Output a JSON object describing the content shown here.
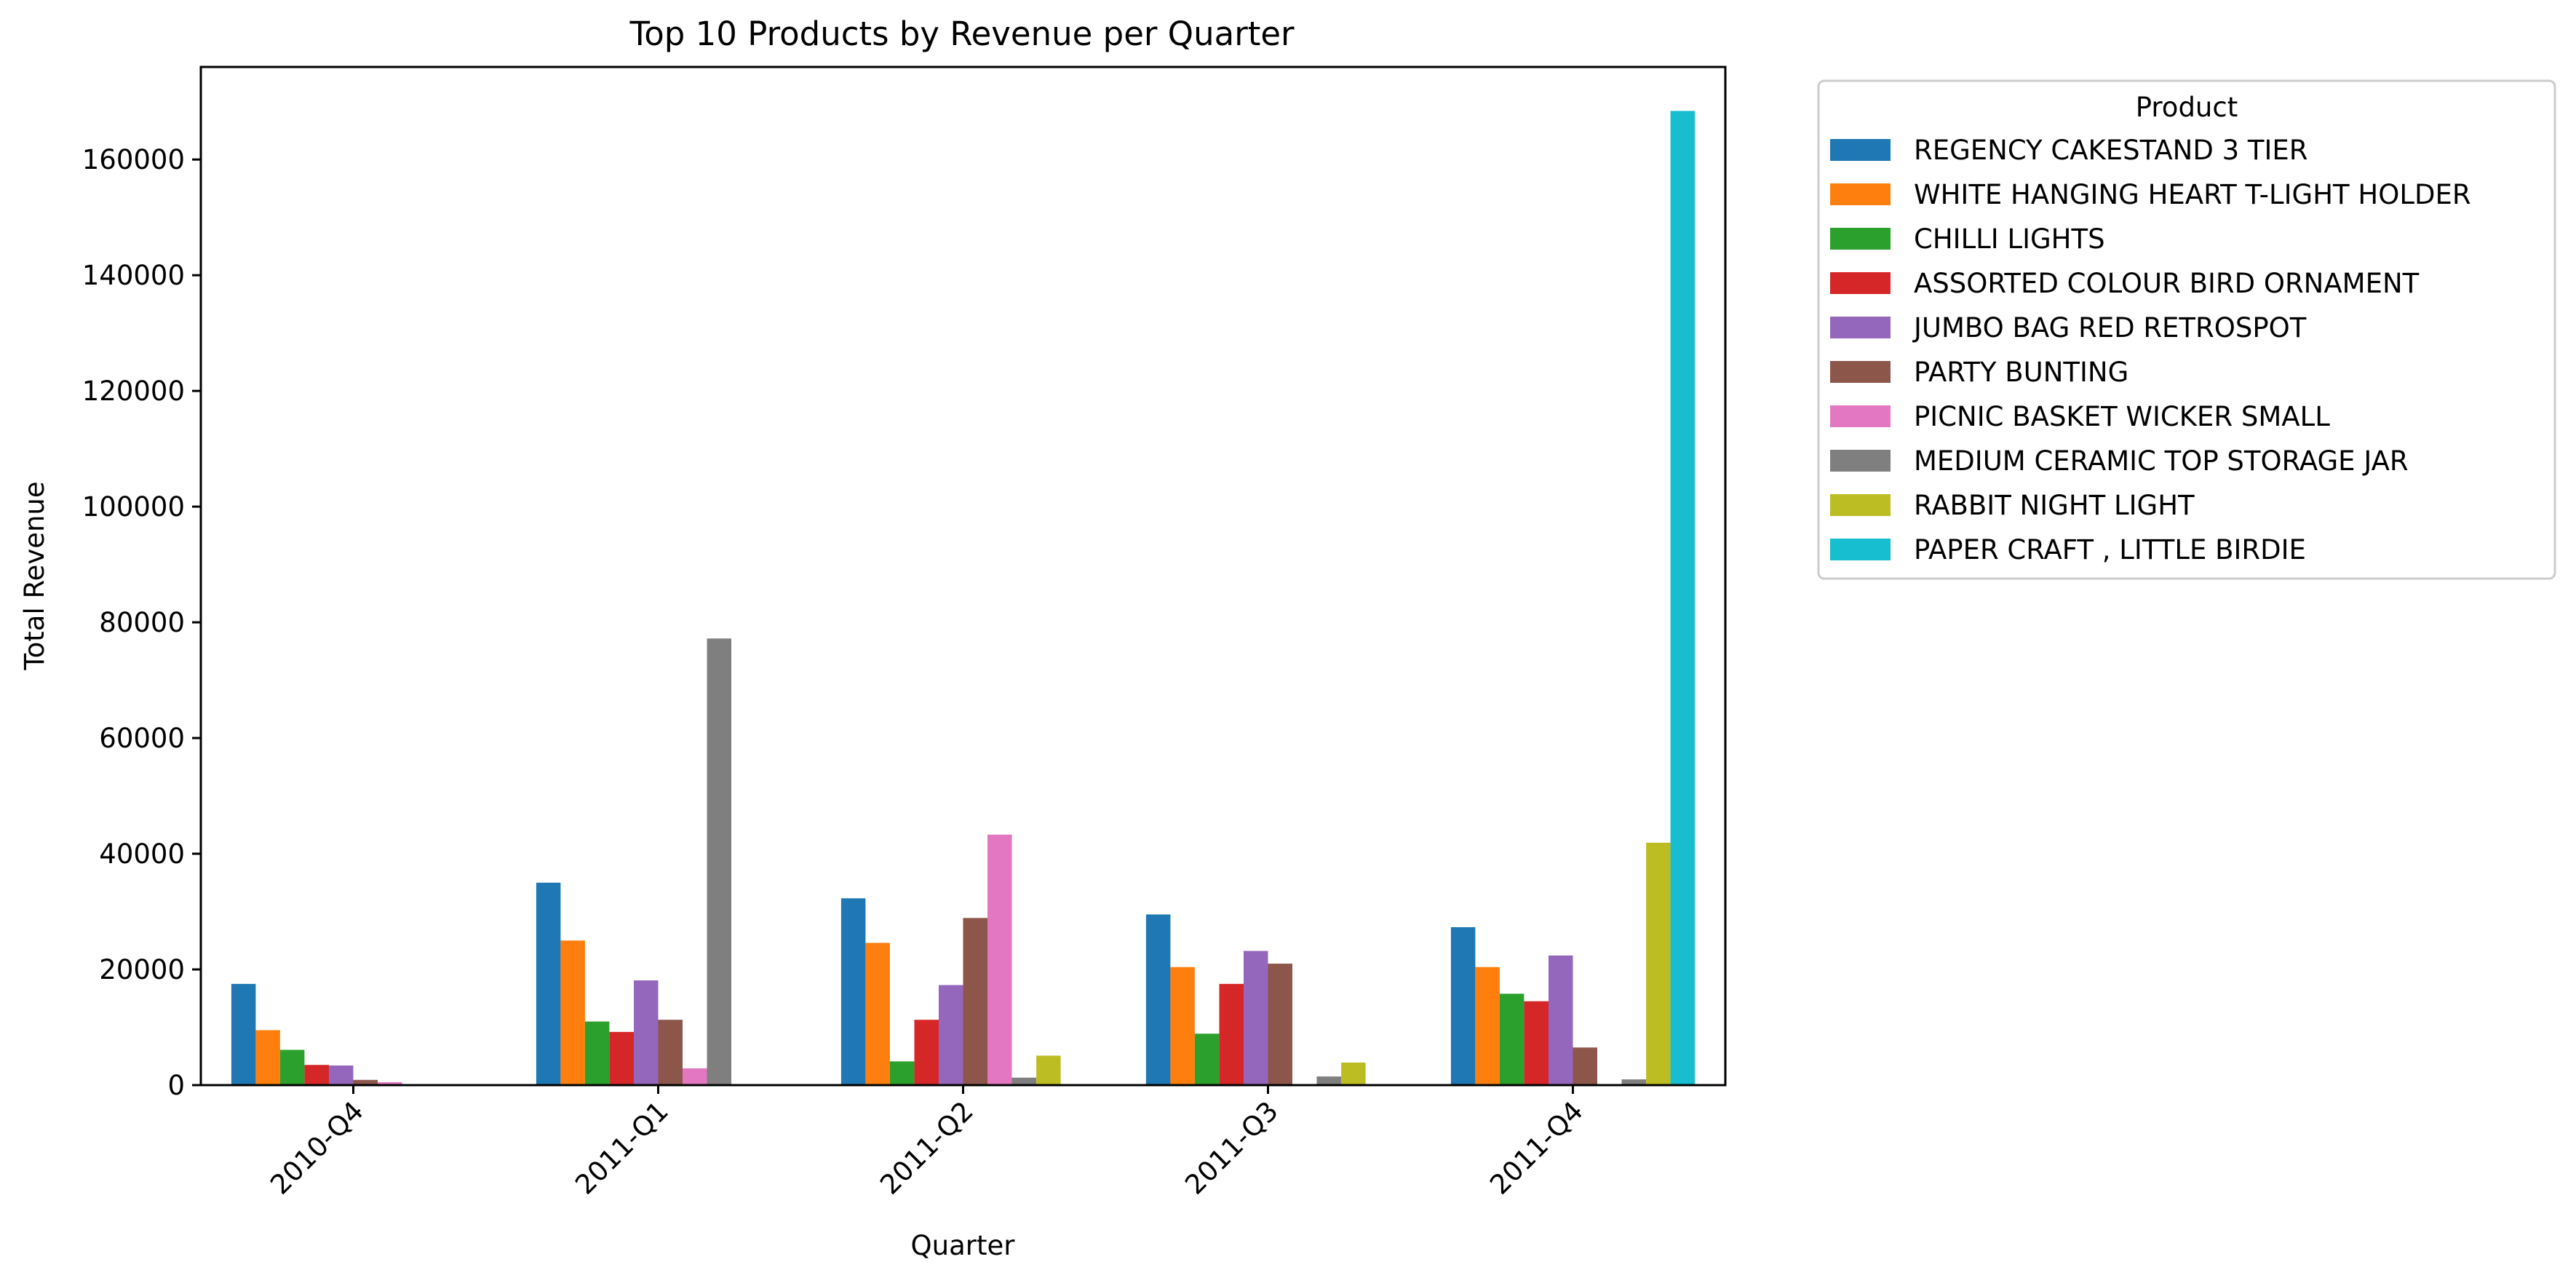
{
  "chart_data": {
    "type": "bar",
    "title": "Top 10 Products by Revenue per Quarter",
    "xlabel": "Quarter",
    "ylabel": "Total Revenue",
    "ylim": [
      0,
      176000
    ],
    "yticks": [
      0,
      20000,
      40000,
      60000,
      80000,
      100000,
      120000,
      140000,
      160000
    ],
    "categories": [
      "2010-Q4",
      "2011-Q1",
      "2011-Q2",
      "2011-Q3",
      "2011-Q4"
    ],
    "legend": {
      "title": "Product",
      "placement": "outside-right-top"
    },
    "grid": false,
    "series": [
      {
        "name": "REGENCY CAKESTAND 3 TIER",
        "color": "#1f77b4",
        "values": [
          17500,
          35000,
          32300,
          29500,
          27300
        ]
      },
      {
        "name": "WHITE HANGING HEART T-LIGHT HOLDER",
        "color": "#ff7f0e",
        "values": [
          9500,
          25000,
          24600,
          20400,
          20400
        ]
      },
      {
        "name": "CHILLI LIGHTS",
        "color": "#2ca02c",
        "values": [
          6100,
          11000,
          4100,
          8900,
          15800
        ]
      },
      {
        "name": "ASSORTED COLOUR BIRD ORNAMENT",
        "color": "#d62728",
        "values": [
          3500,
          9200,
          11300,
          17500,
          14500
        ]
      },
      {
        "name": "JUMBO BAG RED RETROSPOT",
        "color": "#9467bd",
        "values": [
          3400,
          18100,
          17300,
          23200,
          22400
        ]
      },
      {
        "name": "PARTY BUNTING",
        "color": "#8c564b",
        "values": [
          900,
          11300,
          28900,
          21000,
          6500
        ]
      },
      {
        "name": "PICNIC BASKET WICKER SMALL",
        "color": "#e377c2",
        "values": [
          500,
          2900,
          43300,
          0,
          0
        ]
      },
      {
        "name": "MEDIUM CERAMIC TOP STORAGE JAR",
        "color": "#7f7f7f",
        "values": [
          0,
          77200,
          1300,
          1500,
          1000
        ]
      },
      {
        "name": "RABBIT NIGHT LIGHT",
        "color": "#bcbd22",
        "values": [
          0,
          0,
          5100,
          3900,
          41900
        ]
      },
      {
        "name": "PAPER CRAFT , LITTLE BIRDIE",
        "color": "#17becf",
        "values": [
          0,
          0,
          0,
          0,
          168400
        ]
      }
    ]
  }
}
